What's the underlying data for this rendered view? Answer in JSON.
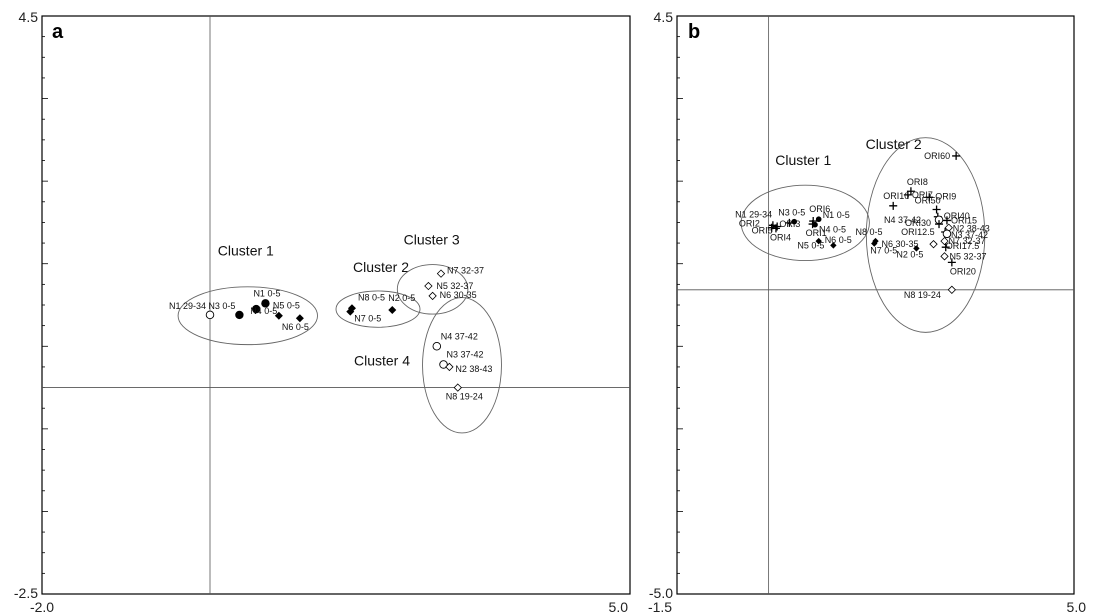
{
  "chart_data": [
    {
      "type": "scatter",
      "panel_label": "a",
      "xlim": [
        -2.0,
        5.0
      ],
      "ylim": [
        -2.5,
        4.5
      ],
      "x_tick_labels": [
        "-2.0",
        "5.0"
      ],
      "y_tick_labels": [
        "-2.5",
        "4.5"
      ],
      "crosshair": {
        "x": 0.0,
        "y": 0.0
      },
      "points": [
        {
          "label": "N1 29-34",
          "x": 0.0,
          "y": 0.88,
          "marker": "open-circle"
        },
        {
          "label": "N3 0-5",
          "x": 0.35,
          "y": 0.88,
          "marker": "filled-circle"
        },
        {
          "label": "N4 0-5",
          "x": 0.55,
          "y": 0.95,
          "marker": "filled-circle"
        },
        {
          "label": "N1 0-5",
          "x": 0.66,
          "y": 1.02,
          "marker": "filled-circle"
        },
        {
          "label": "N5 0-5",
          "x": 0.82,
          "y": 0.87,
          "marker": "filled-diamond"
        },
        {
          "label": "N6 0-5",
          "x": 1.07,
          "y": 0.84,
          "marker": "filled-diamond"
        },
        {
          "label": "N8 0-5",
          "x": 1.69,
          "y": 0.96,
          "marker": "filled-diamond"
        },
        {
          "label": "N7 0-5",
          "x": 1.67,
          "y": 0.92,
          "marker": "filled-diamond"
        },
        {
          "label": "N2 0-5",
          "x": 2.17,
          "y": 0.94,
          "marker": "filled-diamond"
        },
        {
          "label": "N7 32-37",
          "x": 2.75,
          "y": 1.38,
          "marker": "open-diamond"
        },
        {
          "label": "N5 32-37",
          "x": 2.6,
          "y": 1.23,
          "marker": "open-diamond"
        },
        {
          "label": "N6 30-35",
          "x": 2.65,
          "y": 1.11,
          "marker": "open-diamond"
        },
        {
          "label": "N4 37-42",
          "x": 2.7,
          "y": 0.5,
          "marker": "open-circle"
        },
        {
          "label": "N3 37-42",
          "x": 2.78,
          "y": 0.28,
          "marker": "open-circle"
        },
        {
          "label": "N2 38-43",
          "x": 2.85,
          "y": 0.25,
          "marker": "open-diamond"
        },
        {
          "label": "N8 19-24",
          "x": 2.95,
          "y": 0.0,
          "marker": "open-diamond"
        }
      ],
      "clusters": [
        {
          "label": "Cluster 1",
          "cx": 0.45,
          "cy": 0.87,
          "rx": 0.83,
          "ry": 0.35
        },
        {
          "label": "Cluster 2",
          "cx": 2.0,
          "cy": 0.95,
          "rx": 0.5,
          "ry": 0.22
        },
        {
          "label": "Cluster 3",
          "cx": 2.65,
          "cy": 1.19,
          "rx": 0.42,
          "ry": 0.3
        },
        {
          "label": "Cluster 4",
          "cx": 3.0,
          "cy": 0.27,
          "rx": 0.47,
          "ry": 0.82
        }
      ]
    },
    {
      "type": "scatter",
      "panel_label": "b",
      "xlim": [
        -1.5,
        5.0
      ],
      "ylim": [
        -5.0,
        4.5
      ],
      "x_tick_labels": [
        "-1.5",
        "5.0"
      ],
      "y_tick_labels": [
        "-5.0",
        "4.5"
      ],
      "crosshair": {
        "x": 0.0,
        "y": 0.0
      },
      "points": [
        {
          "label": "N1 29-34",
          "x": 0.14,
          "y": 1.04,
          "marker": "plus"
        },
        {
          "label": "ORI2",
          "x": 0.07,
          "y": 1.06,
          "marker": "plus"
        },
        {
          "label": "ORI5",
          "x": 0.05,
          "y": 1.02,
          "marker": "plus"
        },
        {
          "label": "ORI3",
          "x": 0.34,
          "y": 1.1,
          "marker": "plus"
        },
        {
          "label": "ORI4",
          "x": 0.12,
          "y": 1.01,
          "marker": "plus"
        },
        {
          "label": "N3 0-5",
          "x": 0.42,
          "y": 1.12,
          "marker": "filled-circle"
        },
        {
          "label": "ORI6",
          "x": 0.73,
          "y": 1.13,
          "marker": "plus"
        },
        {
          "label": "N1 0-5",
          "x": 0.82,
          "y": 1.16,
          "marker": "filled-circle"
        },
        {
          "label": "N4 0-5",
          "x": 0.76,
          "y": 1.07,
          "marker": "filled-circle"
        },
        {
          "label": "ORI1",
          "x": 0.72,
          "y": 1.08,
          "marker": "plus"
        },
        {
          "label": "N6 0-5",
          "x": 0.82,
          "y": 0.8,
          "marker": "filled-diamond"
        },
        {
          "label": "N5 0-5",
          "x": 1.06,
          "y": 0.73,
          "marker": "filled-diamond"
        },
        {
          "label": "ORI60",
          "x": 3.07,
          "y": 2.2,
          "marker": "plus"
        },
        {
          "label": "ORI8",
          "x": 2.33,
          "y": 1.62,
          "marker": "plus"
        },
        {
          "label": "ORI7",
          "x": 2.28,
          "y": 1.56,
          "marker": "plus"
        },
        {
          "label": "ORI9",
          "x": 2.63,
          "y": 1.52,
          "marker": "plus"
        },
        {
          "label": "ORI10",
          "x": 2.04,
          "y": 1.38,
          "marker": "plus"
        },
        {
          "label": "ORI50",
          "x": 2.75,
          "y": 1.32,
          "marker": "plus"
        },
        {
          "label": "ORI40",
          "x": 2.77,
          "y": 1.2,
          "marker": "plus"
        },
        {
          "label": "N4 37-42",
          "x": 2.79,
          "y": 1.15,
          "marker": "open-circle"
        },
        {
          "label": "ORI15",
          "x": 2.92,
          "y": 1.14,
          "marker": "plus"
        },
        {
          "label": "ORI30",
          "x": 2.79,
          "y": 1.08,
          "marker": "plus"
        },
        {
          "label": "N2 38-43",
          "x": 2.95,
          "y": 1.02,
          "marker": "open-diamond"
        },
        {
          "label": "ORI12.5",
          "x": 2.89,
          "y": 0.95,
          "marker": "plus"
        },
        {
          "label": "N3 37-42",
          "x": 2.92,
          "y": 0.92,
          "marker": "open-circle"
        },
        {
          "label": "N7 32-37",
          "x": 2.88,
          "y": 0.8,
          "marker": "open-diamond"
        },
        {
          "label": "ORI17.5",
          "x": 2.9,
          "y": 0.7,
          "marker": "plus"
        },
        {
          "label": "N8 0-5",
          "x": 1.75,
          "y": 0.8,
          "marker": "filled-diamond"
        },
        {
          "label": "N7 0-5",
          "x": 1.73,
          "y": 0.76,
          "marker": "filled-diamond"
        },
        {
          "label": "N6 30-35",
          "x": 2.7,
          "y": 0.75,
          "marker": "open-diamond"
        },
        {
          "label": "N2 0-5",
          "x": 2.42,
          "y": 0.68,
          "marker": "filled-diamond"
        },
        {
          "label": "N5 32-37",
          "x": 2.88,
          "y": 0.55,
          "marker": "open-diamond"
        },
        {
          "label": "ORI20",
          "x": 3.0,
          "y": 0.45,
          "marker": "plus"
        },
        {
          "label": "N8 19-24",
          "x": 3.0,
          "y": 0.0,
          "marker": "open-diamond"
        }
      ],
      "clusters": [
        {
          "label": "Cluster 1",
          "cx": 0.6,
          "cy": 1.1,
          "rx": 1.05,
          "ry": 0.62
        },
        {
          "label": "Cluster 2",
          "cx": 2.57,
          "cy": 0.9,
          "rx": 0.97,
          "ry": 1.6
        }
      ]
    }
  ]
}
